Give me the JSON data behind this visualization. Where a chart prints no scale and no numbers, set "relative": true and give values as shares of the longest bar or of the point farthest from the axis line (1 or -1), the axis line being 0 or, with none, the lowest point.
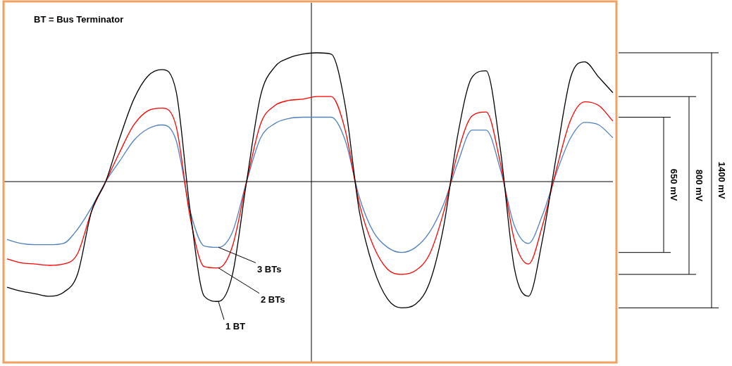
{
  "chart_data": {
    "type": "line",
    "relative": true,
    "marker": "none",
    "line_style": "solid",
    "categories": [
      null,
      null,
      null,
      null,
      null,
      null,
      null,
      null,
      null,
      null,
      null,
      null,
      null,
      null,
      null,
      null,
      null,
      null,
      null,
      null,
      null,
      null,
      null,
      null,
      null,
      null,
      null,
      null,
      null,
      null,
      null,
      null,
      null,
      null,
      null,
      null,
      null,
      null,
      null,
      null,
      null,
      null,
      null,
      null
    ],
    "annotations": [
      "BT = Bus Terminator",
      "1400 mV",
      "800 mV",
      "650 mV"
    ],
    "series": [
      {
        "name": "1 BT",
        "color": "#000000",
        "values": [
          -0.82,
          -0.85,
          -0.87,
          -0.89,
          -0.86,
          -0.72,
          -0.23,
          0,
          0.34,
          0.64,
          0.82,
          0.87,
          0.7,
          -0.23,
          -0.89,
          -0.93,
          -0.72,
          0,
          0.67,
          0.89,
          0.96,
          0.99,
          1,
          0.99,
          0.59,
          -0.23,
          -0.67,
          -0.91,
          -0.98,
          -0.95,
          -0.78,
          -0.34,
          0.37,
          0.81,
          0.86,
          0.26,
          -0.67,
          -0.89,
          -0.45,
          0.21,
          0.81,
          0.93,
          0.81,
          0.69
        ]
      },
      {
        "name": "2 BTs",
        "color": "#ff0000",
        "values": [
          -0.6,
          -0.63,
          -0.64,
          -0.65,
          -0.64,
          -0.56,
          -0.23,
          0,
          0.23,
          0.44,
          0.55,
          0.57,
          0.43,
          -0.28,
          -0.66,
          -0.67,
          -0.5,
          0,
          0.45,
          0.59,
          0.63,
          0.64,
          0.66,
          0.66,
          0.4,
          -0.17,
          -0.5,
          -0.68,
          -0.72,
          -0.69,
          -0.56,
          -0.23,
          0.23,
          0.51,
          0.54,
          0.15,
          -0.45,
          -0.64,
          -0.34,
          0.1,
          0.48,
          0.62,
          0.59,
          0.47
        ]
      },
      {
        "name": "3 BTs",
        "color": "#4f81bd",
        "values": [
          -0.45,
          -0.48,
          -0.49,
          -0.49,
          -0.48,
          -0.37,
          -0.2,
          0,
          0.16,
          0.32,
          0.41,
          0.44,
          0.32,
          -0.23,
          -0.5,
          -0.51,
          -0.39,
          0,
          0.34,
          0.45,
          0.49,
          0.5,
          0.5,
          0.5,
          0.32,
          -0.12,
          -0.39,
          -0.51,
          -0.55,
          -0.51,
          -0.39,
          -0.17,
          0.15,
          0.4,
          0.4,
          0.1,
          -0.34,
          -0.48,
          -0.26,
          0.07,
          0.34,
          0.46,
          0.44,
          0.34
        ]
      }
    ]
  }
}
